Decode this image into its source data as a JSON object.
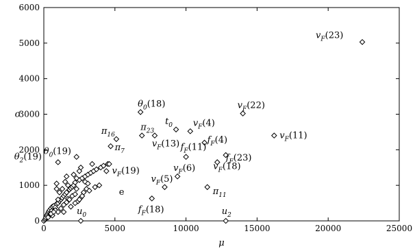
{
  "chart_data": {
    "type": "scatter",
    "title": "",
    "xlabel": "μ",
    "ylabel": "σ",
    "xlim": [
      0,
      25000
    ],
    "ylim": [
      0,
      6000
    ],
    "xticks": [
      "0",
      "5000",
      "10000",
      "15000",
      "20000",
      "25000"
    ],
    "yticks": [
      "0",
      "1000",
      "2000",
      "3000",
      "4000",
      "5000",
      "6000"
    ],
    "grid": false,
    "legend": "none",
    "marker": "diamond-open",
    "points": [
      [
        0,
        0
      ],
      [
        80,
        30
      ],
      [
        120,
        60
      ],
      [
        150,
        100
      ],
      [
        200,
        150
      ],
      [
        250,
        180
      ],
      [
        300,
        220
      ],
      [
        350,
        260
      ],
      [
        400,
        300
      ],
      [
        450,
        200
      ],
      [
        500,
        350
      ],
      [
        550,
        280
      ],
      [
        600,
        400
      ],
      [
        700,
        420
      ],
      [
        800,
        380
      ],
      [
        900,
        480
      ],
      [
        1000,
        500
      ],
      [
        1100,
        560
      ],
      [
        1200,
        600
      ],
      [
        1300,
        650
      ],
      [
        1400,
        700
      ],
      [
        1500,
        750
      ],
      [
        1600,
        800
      ],
      [
        1700,
        620
      ],
      [
        1800,
        880
      ],
      [
        1900,
        920
      ],
      [
        2000,
        960
      ],
      [
        2100,
        1000
      ],
      [
        2200,
        1080
      ],
      [
        2300,
        900
      ],
      [
        2500,
        1150
      ],
      [
        2700,
        1200
      ],
      [
        2900,
        1250
      ],
      [
        3100,
        1300
      ],
      [
        3300,
        1350
      ],
      [
        3500,
        1400
      ],
      [
        3700,
        1450
      ],
      [
        4000,
        1500
      ],
      [
        4200,
        1550
      ],
      [
        4500,
        1600
      ],
      [
        900,
        1050
      ],
      [
        1500,
        1100
      ],
      [
        2600,
        1500
      ],
      [
        3400,
        1600
      ],
      [
        4400,
        1400
      ],
      [
        800,
        300
      ],
      [
        1000,
        250
      ],
      [
        1200,
        350
      ],
      [
        1400,
        450
      ],
      [
        1600,
        520
      ],
      [
        1800,
        600
      ],
      [
        2000,
        700
      ],
      [
        2200,
        750
      ],
      [
        2400,
        550
      ],
      [
        2600,
        650
      ],
      [
        2800,
        800
      ],
      [
        3000,
        900
      ],
      [
        3200,
        850
      ],
      [
        3600,
        950
      ],
      [
        3900,
        1000
      ],
      [
        1300,
        900
      ],
      [
        1700,
        1000
      ],
      [
        2100,
        1300
      ],
      [
        2500,
        1400
      ],
      [
        2900,
        1100
      ],
      [
        1100,
        800
      ],
      [
        2300,
        1200
      ],
      [
        2700,
        700
      ],
      [
        3100,
        1050
      ],
      [
        600,
        150
      ],
      [
        1400,
        250
      ],
      [
        1900,
        400
      ],
      [
        2200,
        500
      ],
      [
        2500,
        600
      ],
      [
        1600,
        1250
      ],
      [
        900,
        900
      ],
      [
        300,
        100
      ],
      [
        500,
        200
      ],
      [
        700,
        250
      ],
      [
        1000,
        600
      ]
    ],
    "annotations": [
      {
        "label": "v_F(23)",
        "x": 22400,
        "y": 5030
      },
      {
        "label": "θ_0(18)",
        "x": 6800,
        "y": 3060
      },
      {
        "label": "v_F(22)",
        "x": 14000,
        "y": 3020
      },
      {
        "label": "π_23",
        "x": 6900,
        "y": 2400
      },
      {
        "label": "t_0",
        "x": 9300,
        "y": 2570
      },
      {
        "label": "v_F(4)",
        "x": 10300,
        "y": 2520
      },
      {
        "label": "f_F(4)",
        "x": 11300,
        "y": 2200
      },
      {
        "label": "v_F(11)",
        "x": 16200,
        "y": 2400
      },
      {
        "label": "π_16",
        "x": 5100,
        "y": 2300
      },
      {
        "label": "θ_0(19)",
        "x": 2300,
        "y": 1800
      },
      {
        "label": "π_7",
        "x": 4700,
        "y": 2100
      },
      {
        "label": "θ_2(19)",
        "x": 1000,
        "y": 1650
      },
      {
        "label": "v_F(13)",
        "x": 7800,
        "y": 2400
      },
      {
        "label": "f_F(11)",
        "x": 10000,
        "y": 1800
      },
      {
        "label": "f_F(23)",
        "x": 12800,
        "y": 1850
      },
      {
        "label": "v_F(19)",
        "x": 4600,
        "y": 1600
      },
      {
        "label": "v_F(18)",
        "x": 12200,
        "y": 1650
      },
      {
        "label": "v_F(6)",
        "x": 9400,
        "y": 1250
      },
      {
        "label": "v_F(5)",
        "x": 8500,
        "y": 950
      },
      {
        "label": "e",
        "x": 5000,
        "y": 810
      },
      {
        "label": "π_11",
        "x": 11500,
        "y": 950
      },
      {
        "label": "f_F(18)",
        "x": 7600,
        "y": 630
      },
      {
        "label": "u_0",
        "x": 2600,
        "y": 0
      },
      {
        "label": "u_2",
        "x": 12800,
        "y": 0
      }
    ]
  }
}
